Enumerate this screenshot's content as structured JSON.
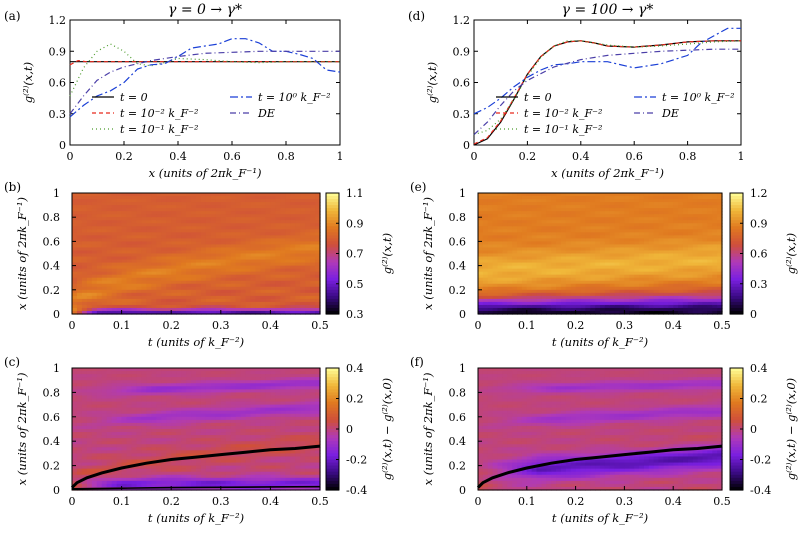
{
  "chart_data": [
    {
      "id": "a",
      "panel_label": "(a)",
      "type": "line",
      "title": "γ = 0 → γ*",
      "xlabel": "x (units of 2πk_F⁻¹)",
      "ylabel": "g⁽²⁾(x,t)",
      "xlim": [
        0,
        1
      ],
      "ylim": [
        0,
        1.2
      ],
      "xticks": [
        "0",
        "0.2",
        "0.4",
        "0.6",
        "0.8",
        "1"
      ],
      "yticks": [
        "0",
        "0.3",
        "0.6",
        "0.9",
        "1.2"
      ],
      "series": [
        {
          "name": "t = 0",
          "color": "#000000",
          "dash": "none",
          "x": [
            0,
            1
          ],
          "y": [
            0.8,
            0.8
          ]
        },
        {
          "name": "t = 10⁻² k_F⁻²",
          "color": "#e8291c",
          "dash": "4,3",
          "x": [
            0,
            0.03,
            0.06,
            0.1,
            0.2,
            0.4,
            0.6,
            0.8,
            1
          ],
          "y": [
            0.77,
            0.81,
            0.8,
            0.8,
            0.8,
            0.8,
            0.8,
            0.8,
            0.8
          ]
        },
        {
          "name": "t = 10⁻¹ k_F⁻²",
          "color": "#4a9a2a",
          "dash": "1,3",
          "x": [
            0,
            0.05,
            0.1,
            0.15,
            0.2,
            0.25,
            0.3,
            0.35,
            0.4,
            0.5,
            0.6,
            0.7,
            0.8,
            0.9,
            1
          ],
          "y": [
            0.47,
            0.74,
            0.9,
            0.97,
            0.9,
            0.78,
            0.76,
            0.79,
            0.83,
            0.82,
            0.8,
            0.79,
            0.8,
            0.8,
            0.8
          ]
        },
        {
          "name": "t = 10⁰ k_F⁻²",
          "color": "#1a3fd6",
          "dash": "8,3,2,3",
          "x": [
            0,
            0.05,
            0.1,
            0.15,
            0.2,
            0.25,
            0.3,
            0.35,
            0.4,
            0.45,
            0.5,
            0.55,
            0.6,
            0.65,
            0.7,
            0.75,
            0.8,
            0.85,
            0.9,
            0.95,
            1
          ],
          "y": [
            0.27,
            0.38,
            0.47,
            0.52,
            0.6,
            0.73,
            0.77,
            0.78,
            0.85,
            0.93,
            0.95,
            0.97,
            1.02,
            1.02,
            0.98,
            0.9,
            0.9,
            0.87,
            0.83,
            0.72,
            0.7
          ]
        },
        {
          "name": "DE",
          "color": "#4b3fa8",
          "dash": "6,3,1,3",
          "x": [
            0,
            0.05,
            0.1,
            0.15,
            0.2,
            0.3,
            0.4,
            0.5,
            0.6,
            0.7,
            0.8,
            0.9,
            1
          ],
          "y": [
            0.3,
            0.47,
            0.62,
            0.7,
            0.75,
            0.81,
            0.85,
            0.88,
            0.89,
            0.9,
            0.9,
            0.9,
            0.9
          ]
        }
      ],
      "legend": "center-bottom, two columns"
    },
    {
      "id": "d",
      "panel_label": "(d)",
      "type": "line",
      "title": "γ = 100 → γ*",
      "xlabel": "x (units of 2πk_F⁻¹)",
      "ylabel": "g⁽²⁾(x,t)",
      "xlim": [
        0,
        1
      ],
      "ylim": [
        0,
        1.2
      ],
      "xticks": [
        "0",
        "0.2",
        "0.4",
        "0.6",
        "0.8",
        "1"
      ],
      "yticks": [
        "0",
        "0.3",
        "0.6",
        "0.9",
        "1.2"
      ],
      "series": [
        {
          "name": "t = 0",
          "color": "#000000",
          "dash": "none",
          "x": [
            0,
            0.05,
            0.1,
            0.15,
            0.2,
            0.25,
            0.3,
            0.35,
            0.4,
            0.45,
            0.5,
            0.6,
            0.7,
            0.8,
            0.9,
            1
          ],
          "y": [
            0,
            0.06,
            0.22,
            0.44,
            0.68,
            0.85,
            0.95,
            0.99,
            1.0,
            0.98,
            0.95,
            0.94,
            0.96,
            0.99,
            1.0,
            1.0
          ]
        },
        {
          "name": "t = 10⁻² k_F⁻²",
          "color": "#e8291c",
          "dash": "4,3",
          "x": [
            0,
            0.05,
            0.1,
            0.15,
            0.2,
            0.25,
            0.3,
            0.35,
            0.4,
            0.45,
            0.5,
            0.6,
            0.7,
            0.8,
            0.9,
            1
          ],
          "y": [
            0.01,
            0.07,
            0.23,
            0.45,
            0.68,
            0.85,
            0.95,
            0.99,
            1.0,
            0.98,
            0.95,
            0.94,
            0.96,
            0.99,
            1.0,
            1.0
          ]
        },
        {
          "name": "t = 10⁻¹ k_F⁻²",
          "color": "#4a9a2a",
          "dash": "1,3",
          "x": [
            0,
            0.05,
            0.1,
            0.15,
            0.2,
            0.25,
            0.3,
            0.35,
            0.4,
            0.45,
            0.5,
            0.6,
            0.7,
            0.8,
            0.9,
            1
          ],
          "y": [
            0.1,
            0.14,
            0.25,
            0.44,
            0.66,
            0.84,
            0.95,
            1.0,
            1.0,
            0.98,
            0.96,
            0.94,
            0.95,
            0.97,
            0.99,
            1.0
          ]
        },
        {
          "name": "t = 10⁰ k_F⁻²",
          "color": "#1a3fd6",
          "dash": "8,3,2,3",
          "x": [
            0,
            0.05,
            0.1,
            0.15,
            0.2,
            0.25,
            0.3,
            0.35,
            0.4,
            0.5,
            0.6,
            0.7,
            0.8,
            0.85,
            0.9,
            0.95,
            1
          ],
          "y": [
            0.3,
            0.36,
            0.45,
            0.56,
            0.65,
            0.72,
            0.77,
            0.78,
            0.8,
            0.8,
            0.74,
            0.78,
            0.86,
            0.98,
            1.05,
            1.12,
            1.12
          ]
        },
        {
          "name": "DE",
          "color": "#4b3fa8",
          "dash": "6,3,1,3",
          "x": [
            0,
            0.05,
            0.1,
            0.15,
            0.2,
            0.3,
            0.4,
            0.5,
            0.6,
            0.7,
            0.8,
            0.9,
            1
          ],
          "y": [
            0.1,
            0.22,
            0.38,
            0.52,
            0.62,
            0.75,
            0.82,
            0.86,
            0.88,
            0.9,
            0.91,
            0.92,
            0.92
          ]
        }
      ],
      "legend": "center-bottom, two columns"
    },
    {
      "id": "b",
      "panel_label": "(b)",
      "type": "heatmap",
      "xlabel": "t (units of k_F⁻²)",
      "ylabel": "x (units of 2πk_F⁻¹)",
      "xlim": [
        0,
        0.5
      ],
      "ylim": [
        0,
        1
      ],
      "xticks": [
        "0",
        "0.1",
        "0.2",
        "0.3",
        "0.4",
        "0.5"
      ],
      "yticks": [
        "0",
        "0.2",
        "0.4",
        "0.6",
        "0.8",
        "1"
      ],
      "colorbar": {
        "label": "g⁽²⁾(x,t)",
        "range": [
          0.3,
          1.1
        ],
        "ticks": [
          "0.3",
          "0.5",
          "0.7",
          "0.9",
          "1.1"
        ]
      },
      "colormap": [
        "#000000",
        "#3b0a85",
        "#7a1fe0",
        "#b03ab8",
        "#cf4f3a",
        "#e07a20",
        "#f0b83a",
        "#ffff99"
      ],
      "field": {
        "base": 0.8,
        "ripple": 0.07,
        "wave_band": 0.12,
        "hole_depth": 0.45,
        "hole_width": 0.04
      }
    },
    {
      "id": "e",
      "panel_label": "(e)",
      "type": "heatmap",
      "xlabel": "t (units of k_F⁻²)",
      "ylabel": "x (units of 2πk_F⁻¹)",
      "xlim": [
        0,
        0.5
      ],
      "ylim": [
        0,
        1
      ],
      "xticks": [
        "0",
        "0.1",
        "0.2",
        "0.3",
        "0.4",
        "0.5"
      ],
      "yticks": [
        "0",
        "0.2",
        "0.4",
        "0.6",
        "0.8",
        "1"
      ],
      "colorbar": {
        "label": "g⁽²⁾(x,t)",
        "range": [
          0,
          1.2
        ],
        "ticks": [
          "0",
          "0.3",
          "0.6",
          "0.9",
          "1.2"
        ]
      },
      "colormap": [
        "#000000",
        "#3b0a85",
        "#7a1fe0",
        "#b03ab8",
        "#cf4f3a",
        "#e07a20",
        "#f0b83a",
        "#ffff99"
      ],
      "field": {
        "base": 0.85,
        "ripple": 0.08,
        "wave_band": 0.18,
        "hole_depth": 0.75,
        "hole_width": 0.14
      }
    },
    {
      "id": "c",
      "panel_label": "(c)",
      "type": "heatmap",
      "xlabel": "t (units of k_F⁻²)",
      "ylabel": "x (units of 2πk_F⁻¹)",
      "xlim": [
        0,
        0.5
      ],
      "ylim": [
        0,
        1
      ],
      "xticks": [
        "0",
        "0.1",
        "0.2",
        "0.3",
        "0.4",
        "0.5"
      ],
      "yticks": [
        "0",
        "0.2",
        "0.4",
        "0.6",
        "0.8",
        "1"
      ],
      "colorbar": {
        "label": "g⁽²⁾(x,t) − g⁽²⁾(x,0)",
        "range": [
          -0.4,
          0.4
        ],
        "ticks": [
          "-0.4",
          "-0.2",
          "0",
          "0.2",
          "0.4"
        ]
      },
      "colormap": [
        "#000000",
        "#3b0a85",
        "#7a1fe0",
        "#b03ab8",
        "#cf4f3a",
        "#e07a20",
        "#f0b83a",
        "#ffff99"
      ],
      "overlay_curve": {
        "t": [
          0,
          0.01,
          0.03,
          0.06,
          0.1,
          0.15,
          0.2,
          0.25,
          0.3,
          0.35,
          0.4,
          0.45,
          0.5
        ],
        "x": [
          0.02,
          0.06,
          0.1,
          0.14,
          0.18,
          0.22,
          0.25,
          0.27,
          0.29,
          0.31,
          0.33,
          0.34,
          0.36
        ]
      },
      "overlay_curve2": {
        "t": [
          0,
          0.1,
          0.2,
          0.3,
          0.4,
          0.5
        ],
        "x": [
          0.01,
          0.015,
          0.02,
          0.022,
          0.025,
          0.027
        ]
      }
    },
    {
      "id": "f",
      "panel_label": "(f)",
      "type": "heatmap",
      "xlabel": "t (units of k_F⁻²)",
      "ylabel": "x (units of 2πk_F⁻¹)",
      "xlim": [
        0,
        0.5
      ],
      "ylim": [
        0,
        1
      ],
      "xticks": [
        "0",
        "0.1",
        "0.2",
        "0.3",
        "0.4",
        "0.5"
      ],
      "yticks": [
        "0",
        "0.2",
        "0.4",
        "0.6",
        "0.8",
        "1"
      ],
      "colorbar": {
        "label": "g⁽²⁾(x,t) − g⁽²⁾(x,0)",
        "range": [
          -0.4,
          0.4
        ],
        "ticks": [
          "-0.4",
          "-0.2",
          "0",
          "0.2",
          "0.4"
        ]
      },
      "colormap": [
        "#000000",
        "#3b0a85",
        "#7a1fe0",
        "#b03ab8",
        "#cf4f3a",
        "#e07a20",
        "#f0b83a",
        "#ffff99"
      ],
      "overlay_curve": {
        "t": [
          0,
          0.01,
          0.03,
          0.06,
          0.1,
          0.15,
          0.2,
          0.25,
          0.3,
          0.35,
          0.4,
          0.45,
          0.5
        ],
        "x": [
          0.02,
          0.06,
          0.1,
          0.14,
          0.18,
          0.22,
          0.25,
          0.27,
          0.29,
          0.31,
          0.33,
          0.34,
          0.36
        ]
      }
    }
  ]
}
